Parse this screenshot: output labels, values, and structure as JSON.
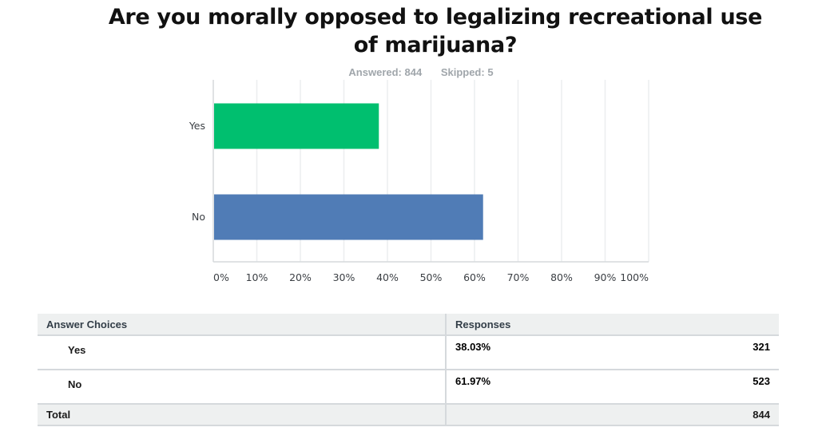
{
  "title": "Are you morally opposed to legalizing recreational use of marijuana?",
  "answered_label": "Answered: 844",
  "skipped_label": "Skipped: 5",
  "colors": {
    "yes": "#00bf6f",
    "no": "#507cb6",
    "grid": "#eceeef",
    "axis": "#d5d9dc"
  },
  "chart_data": {
    "type": "bar",
    "orientation": "horizontal",
    "title": "Are you morally opposed to legalizing recreational use of marijuana?",
    "categories": [
      "Yes",
      "No"
    ],
    "values": [
      38.03,
      61.97
    ],
    "xlabel": "",
    "ylabel": "",
    "xlim": [
      0,
      100
    ],
    "x_ticks": [
      0,
      10,
      20,
      30,
      40,
      50,
      60,
      70,
      80,
      90,
      100
    ],
    "x_tick_labels": [
      "0%",
      "10%",
      "20%",
      "30%",
      "40%",
      "50%",
      "60%",
      "70%",
      "80%",
      "90%",
      "100%"
    ],
    "grid": true,
    "legend": "none"
  },
  "table": {
    "headers": [
      "Answer Choices",
      "Responses"
    ],
    "rows": [
      {
        "choice": "Yes",
        "percent": "38.03%",
        "count": "321"
      },
      {
        "choice": "No",
        "percent": "61.97%",
        "count": "523"
      }
    ],
    "total_label": "Total",
    "total_count": "844"
  }
}
